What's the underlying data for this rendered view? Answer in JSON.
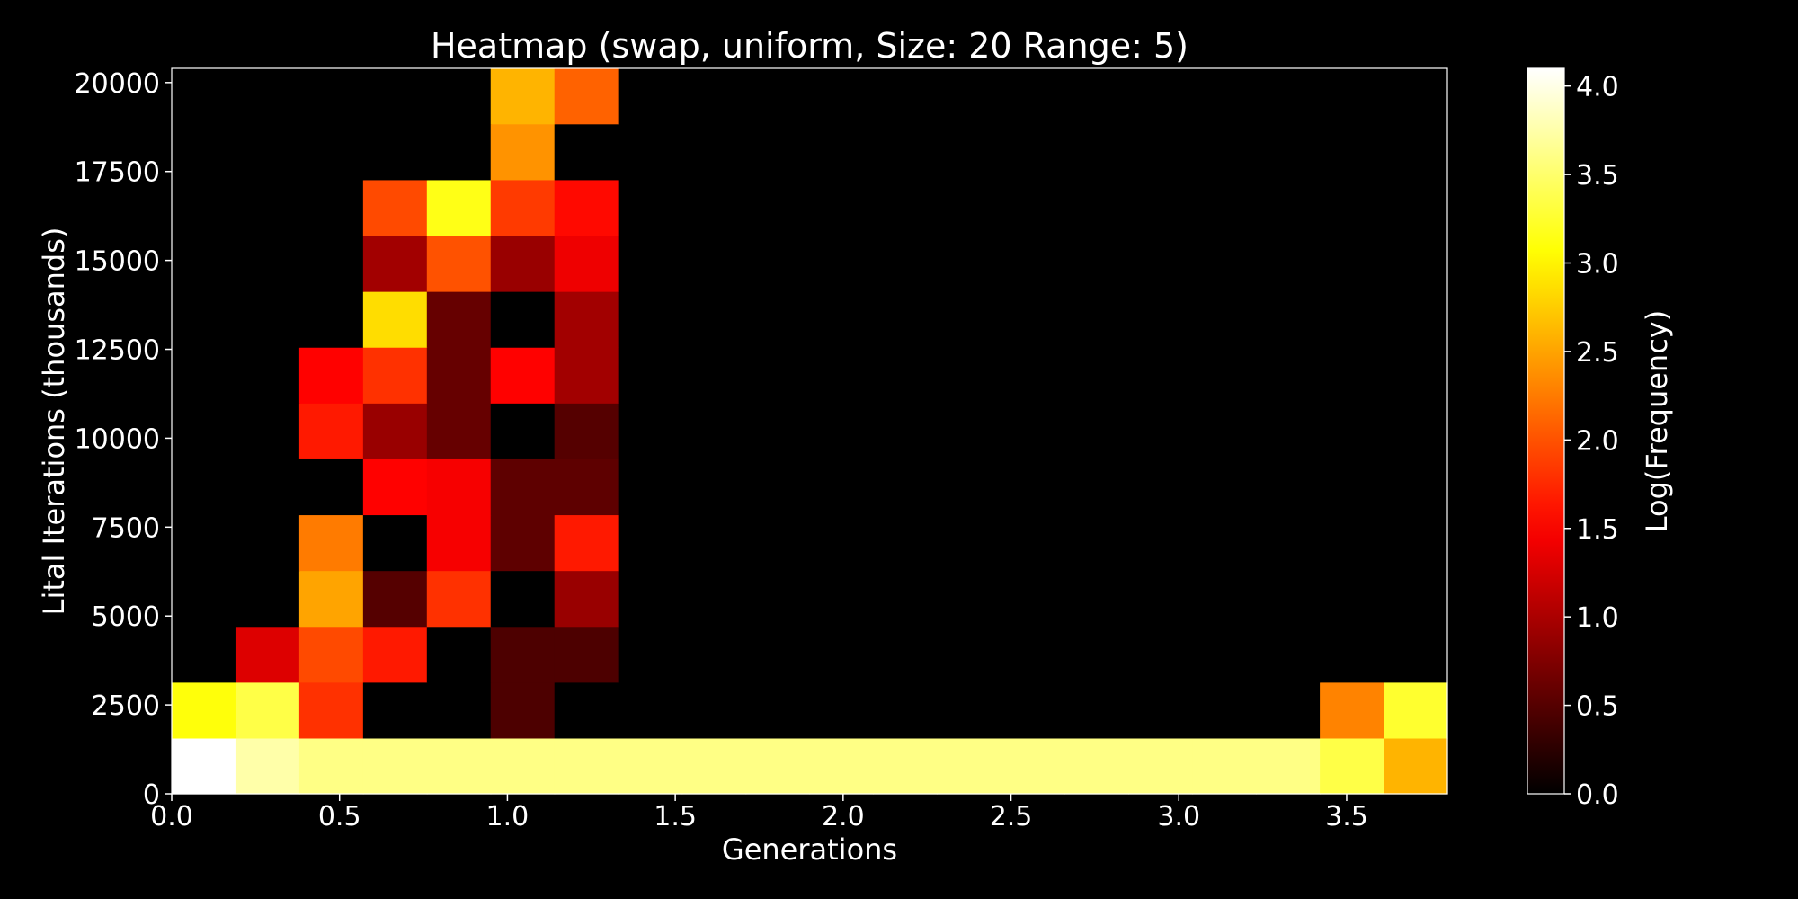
{
  "chart_data": {
    "type": "heatmap",
    "title": "Heatmap (swap, uniform, Size: 20 Range: 5)",
    "xlabel": "Generations",
    "ylabel": "Lital Iterations (thousands)",
    "colorbar_label": "Log(Frequency)",
    "colormap": "hot",
    "xlim": [
      0,
      3.8
    ],
    "ylim": [
      0,
      20400
    ],
    "clim": [
      0,
      4.1
    ],
    "x_ticks": [
      0,
      0.5,
      1.0,
      1.5,
      2.0,
      2.5,
      3.0,
      3.5
    ],
    "x_tick_labels": [
      "0.0",
      "0.5",
      "1.0",
      "1.5",
      "2.0",
      "2.5",
      "3.0",
      "3.5"
    ],
    "y_ticks": [
      0,
      2500,
      5000,
      7500,
      10000,
      12500,
      15000,
      17500,
      20000
    ],
    "y_tick_labels": [
      "0",
      "2500",
      "5000",
      "7500",
      "10000",
      "12500",
      "15000",
      "17500",
      "20000"
    ],
    "c_ticks": [
      0,
      0.5,
      1.0,
      1.5,
      2.0,
      2.5,
      3.0,
      3.5,
      4.0
    ],
    "c_tick_labels": [
      "0.0",
      "0.5",
      "1.0",
      "1.5",
      "2.0",
      "2.5",
      "3.0",
      "3.5",
      "4.0"
    ],
    "x_bin_edges": [
      0,
      0.19,
      0.38,
      0.57,
      0.76,
      0.95,
      1.14,
      1.33,
      1.52,
      1.71,
      1.9,
      2.09,
      2.28,
      2.47,
      2.66,
      2.85,
      3.04,
      3.23,
      3.42,
      3.61,
      3.8
    ],
    "y_bin_edges": [
      0,
      1570,
      3140,
      4710,
      6280,
      7850,
      9420,
      10990,
      12560,
      14130,
      15700,
      17270,
      18840,
      20410
    ],
    "z": [
      [
        4.1,
        3.75,
        3.6,
        3.6,
        3.6,
        3.6,
        3.6,
        3.6,
        3.6,
        3.6,
        3.6,
        3.6,
        3.6,
        3.6,
        3.6,
        3.6,
        3.6,
        3.6,
        3.35,
        2.6
      ],
      [
        3.1,
        3.35,
        1.8,
        0.0,
        0.0,
        0.45,
        0.0,
        0.0,
        0.0,
        0.0,
        0.0,
        0.0,
        0.0,
        0.0,
        0.0,
        0.0,
        0.0,
        0.0,
        2.3,
        3.25
      ],
      [
        0.0,
        1.3,
        1.95,
        1.65,
        0.0,
        0.45,
        0.45,
        0.0,
        0.0,
        0.0,
        0.0,
        0.0,
        0.0,
        0.0,
        0.0,
        0.0,
        0.0,
        0.0,
        0.0,
        0.0
      ],
      [
        0.0,
        0.0,
        2.5,
        0.5,
        1.8,
        0.0,
        0.9,
        0.0,
        0.0,
        0.0,
        0.0,
        0.0,
        0.0,
        0.0,
        0.0,
        0.0,
        0.0,
        0.0,
        0.0,
        0.0
      ],
      [
        0.0,
        0.0,
        2.25,
        0.0,
        1.45,
        0.55,
        1.65,
        0.0,
        0.0,
        0.0,
        0.0,
        0.0,
        0.0,
        0.0,
        0.0,
        0.0,
        0.0,
        0.0,
        0.0,
        0.0
      ],
      [
        0.0,
        0.0,
        0.0,
        1.5,
        1.45,
        0.55,
        0.55,
        0.0,
        0.0,
        0.0,
        0.0,
        0.0,
        0.0,
        0.0,
        0.0,
        0.0,
        0.0,
        0.0,
        0.0,
        0.0
      ],
      [
        0.0,
        0.0,
        1.65,
        0.9,
        0.6,
        0.0,
        0.5,
        0.0,
        0.0,
        0.0,
        0.0,
        0.0,
        0.0,
        0.0,
        0.0,
        0.0,
        0.0,
        0.0,
        0.0,
        0.0
      ],
      [
        0.0,
        0.0,
        1.5,
        1.8,
        0.6,
        1.5,
        0.95,
        0.0,
        0.0,
        0.0,
        0.0,
        0.0,
        0.0,
        0.0,
        0.0,
        0.0,
        0.0,
        0.0,
        0.0,
        0.0
      ],
      [
        0.0,
        0.0,
        0.0,
        2.85,
        0.6,
        0.0,
        0.95,
        0.0,
        0.0,
        0.0,
        0.0,
        0.0,
        0.0,
        0.0,
        0.0,
        0.0,
        0.0,
        0.0,
        0.0,
        0.0
      ],
      [
        0.0,
        0.0,
        0.0,
        0.95,
        2.0,
        0.9,
        1.4,
        0.0,
        0.0,
        0.0,
        0.0,
        0.0,
        0.0,
        0.0,
        0.0,
        0.0,
        0.0,
        0.0,
        0.0,
        0.0
      ],
      [
        0.0,
        0.0,
        0.0,
        1.95,
        3.15,
        1.85,
        1.55,
        0.0,
        0.0,
        0.0,
        0.0,
        0.0,
        0.0,
        0.0,
        0.0,
        0.0,
        0.0,
        0.0,
        0.0,
        0.0
      ],
      [
        0.0,
        0.0,
        0.0,
        0.0,
        0.0,
        2.4,
        0.0,
        0.0,
        0.0,
        0.0,
        0.0,
        0.0,
        0.0,
        0.0,
        0.0,
        0.0,
        0.0,
        0.0,
        0.0,
        0.0
      ],
      [
        0.0,
        0.0,
        0.0,
        0.0,
        0.0,
        2.6,
        2.1,
        0.0,
        0.0,
        0.0,
        0.0,
        0.0,
        0.0,
        0.0,
        0.0,
        0.0,
        0.0,
        0.0,
        0.0,
        0.0
      ]
    ],
    "grid": false,
    "colors": {
      "background": "#000000",
      "foreground": "#ffffff"
    }
  }
}
